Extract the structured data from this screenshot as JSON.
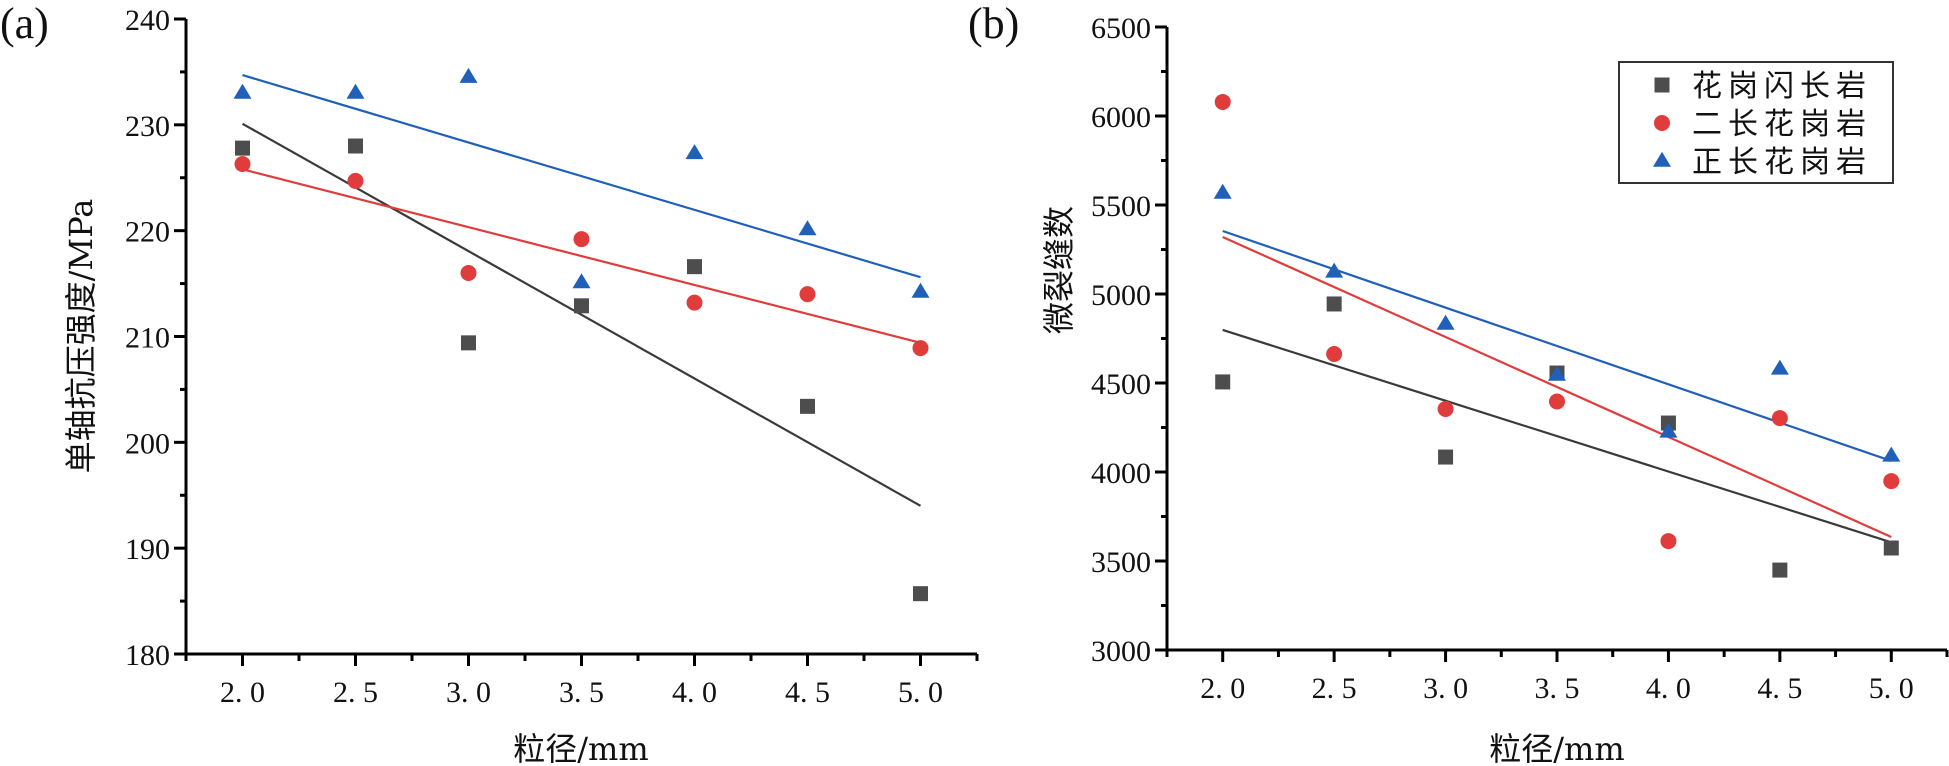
{
  "chart_data": [
    {
      "type": "scatter",
      "panel_label": "(a)",
      "xlabel": "粒径/mm",
      "ylabel": "单轴抗压强度/MPa",
      "xlim": [
        1.75,
        5.25
      ],
      "ylim": [
        180,
        240
      ],
      "x_ticks": [
        2.0,
        2.5,
        3.0,
        3.5,
        4.0,
        4.5,
        5.0
      ],
      "x_tick_labels": [
        "2. 0",
        "2. 5",
        "3. 0",
        "3. 5",
        "4. 0",
        "4. 5",
        "5. 0"
      ],
      "y_ticks": [
        180,
        190,
        200,
        210,
        220,
        230,
        240
      ],
      "y_tick_labels": [
        "180",
        "190",
        "200",
        "210",
        "220",
        "230",
        "240"
      ],
      "y_minor_step": 5,
      "x_minor_step": 0.25,
      "grid": false,
      "legend": null,
      "x": [
        2.0,
        2.5,
        3.0,
        3.5,
        4.0,
        4.5,
        5.0
      ],
      "series": [
        {
          "name": "花岗闪长岩",
          "marker": "square",
          "color": "#4d4d4d",
          "values": [
            227.8,
            228.0,
            209.4,
            212.9,
            216.6,
            203.4,
            185.7
          ],
          "fit": {
            "x": [
              2.0,
              5.0
            ],
            "y": [
              230.1,
              194.0
            ]
          }
        },
        {
          "name": "二长花岗岩",
          "marker": "circle",
          "color": "#e03c3c",
          "values": [
            226.3,
            224.7,
            216.0,
            219.2,
            213.2,
            214.0,
            208.9
          ],
          "fit": {
            "x": [
              2.0,
              5.0
            ],
            "y": [
              225.8,
              209.4
            ]
          }
        },
        {
          "name": "正长花岗岩",
          "marker": "triangle",
          "color": "#2060b8",
          "values": [
            233.0,
            233.0,
            234.5,
            215.1,
            227.3,
            220.1,
            214.2
          ],
          "fit": {
            "x": [
              2.0,
              5.0
            ],
            "y": [
              234.7,
              215.6
            ]
          }
        }
      ]
    },
    {
      "type": "scatter",
      "panel_label": "(b)",
      "xlabel": "粒径/mm",
      "ylabel": "微裂缝数",
      "xlim": [
        1.75,
        5.25
      ],
      "ylim": [
        3000,
        6500
      ],
      "x_ticks": [
        2.0,
        2.5,
        3.0,
        3.5,
        4.0,
        4.5,
        5.0
      ],
      "x_tick_labels": [
        "2. 0",
        "2. 5",
        "3. 0",
        "3. 5",
        "4. 0",
        "4. 5",
        "5. 0"
      ],
      "y_ticks": [
        3000,
        3500,
        4000,
        4500,
        5000,
        5500,
        6000,
        6500
      ],
      "y_tick_labels": [
        "3000",
        "3500",
        "4000",
        "4500",
        "5000",
        "5500",
        "6000",
        "6500"
      ],
      "y_minor_step": 250,
      "x_minor_step": 0.25,
      "grid": false,
      "legend": {
        "placement": "top-right",
        "entries": [
          "花岗闪长岩",
          "二长花岗岩",
          "正长花岗岩"
        ]
      },
      "x": [
        2.0,
        2.5,
        3.0,
        3.5,
        4.0,
        4.5,
        5.0
      ],
      "series": [
        {
          "name": "花岗闪长岩",
          "marker": "square",
          "color": "#4d4d4d",
          "values": [
            4506,
            4944,
            4084,
            4556,
            4275,
            3449,
            3573
          ],
          "fit": {
            "x": [
              2.0,
              5.0
            ],
            "y": [
              4798,
              3605
            ]
          }
        },
        {
          "name": "二长花岗岩",
          "marker": "circle",
          "color": "#e03c3c",
          "values": [
            6079,
            4663,
            4354,
            4396,
            3612,
            4303,
            3949
          ],
          "fit": {
            "x": [
              2.0,
              5.0
            ],
            "y": [
              5320,
              3635
            ]
          }
        },
        {
          "name": "正长花岗岩",
          "marker": "triangle",
          "color": "#2060b8",
          "values": [
            5567,
            5124,
            4831,
            4545,
            4225,
            4579,
            4090
          ],
          "fit": {
            "x": [
              2.0,
              5.0
            ],
            "y": [
              5354,
              4062
            ]
          }
        }
      ]
    }
  ]
}
